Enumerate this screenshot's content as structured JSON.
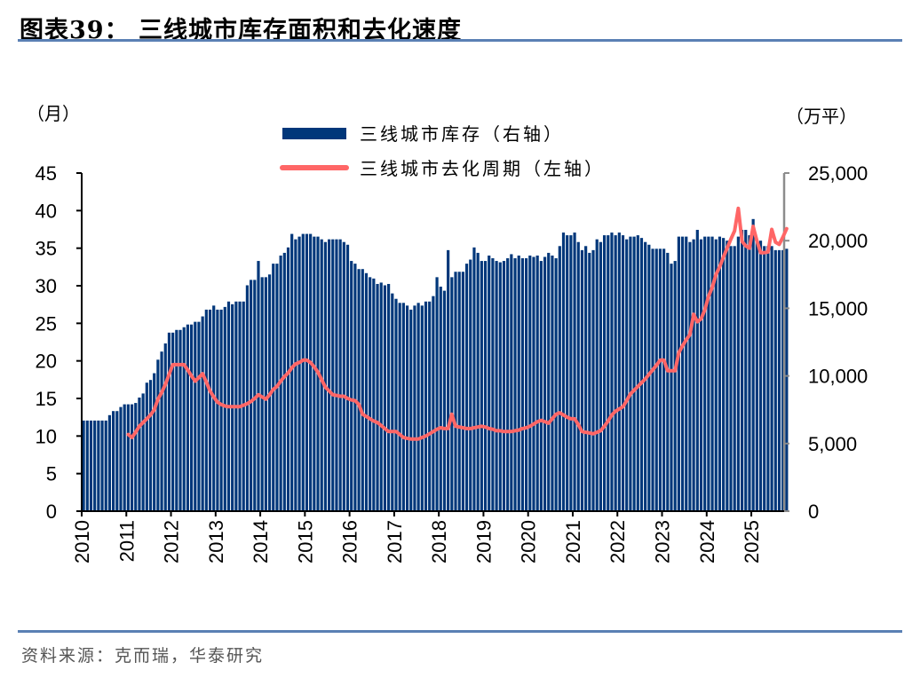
{
  "title": "图表39：  三线城市库存面积和去化速度",
  "source": "资料来源：克而瑞，华泰研究",
  "colors": {
    "bars": "#00377a",
    "line": "#ff6666",
    "rule": "#5a80b4",
    "right_axis": "#8c8c8c"
  },
  "chart_data": {
    "type": "bar+line",
    "left_axis": {
      "unit_label": "（月）",
      "ylim": [
        0,
        45
      ],
      "ticks": [
        "0",
        "5",
        "10",
        "15",
        "20",
        "25",
        "30",
        "35",
        "40",
        "45"
      ]
    },
    "right_axis": {
      "unit_label": "（万平）",
      "ylim": [
        0,
        25000
      ],
      "ticks": [
        "0",
        "5,000",
        "10,000",
        "15,000",
        "20,000",
        "25,000"
      ]
    },
    "x_ticks": [
      "2010",
      "2011",
      "2012",
      "2013",
      "2014",
      "2015",
      "2016",
      "2017",
      "2018",
      "2019",
      "2020",
      "2021",
      "2022",
      "2023",
      "2024",
      "2025"
    ],
    "legend_placement": "top-center",
    "series": [
      {
        "name": "三线城市库存（右轴）",
        "type": "bar",
        "axis": "right",
        "start": "2010-01",
        "frequency": "monthly",
        "values": [
          6700,
          6700,
          6700,
          6700,
          6700,
          6700,
          6700,
          7100,
          7400,
          7400,
          7700,
          7900,
          7900,
          7900,
          8000,
          8400,
          8700,
          9500,
          9700,
          10200,
          11200,
          11800,
          12400,
          13200,
          13200,
          13400,
          13400,
          13600,
          13800,
          13800,
          14000,
          14000,
          14400,
          14900,
          14900,
          15200,
          14900,
          14900,
          15100,
          15500,
          15300,
          15500,
          15500,
          15500,
          16700,
          17100,
          17100,
          18500,
          17300,
          17300,
          17500,
          18300,
          18300,
          18900,
          19100,
          19500,
          20500,
          20100,
          20300,
          20500,
          20500,
          20500,
          20300,
          20300,
          20100,
          19900,
          20100,
          20100,
          20100,
          20100,
          19900,
          19700,
          18500,
          18300,
          17900,
          17900,
          17600,
          17300,
          17200,
          16800,
          16900,
          16700,
          16800,
          16100,
          15700,
          15400,
          15400,
          15200,
          14900,
          15200,
          15400,
          15200,
          15500,
          15500,
          15900,
          17300,
          16600,
          16300,
          19300,
          17300,
          17700,
          17700,
          17700,
          18300,
          18600,
          19500,
          19100,
          18500,
          18500,
          18900,
          18700,
          18500,
          18400,
          18500,
          18700,
          19000,
          18700,
          18900,
          18700,
          18700,
          18900,
          18800,
          18900,
          18500,
          18800,
          19100,
          18900,
          18700,
          19600,
          20600,
          20400,
          20400,
          20600,
          19900,
          19300,
          19600,
          19100,
          19300,
          20100,
          19900,
          20400,
          20400,
          20600,
          20400,
          20600,
          20400,
          20100,
          20300,
          20300,
          20400,
          20200,
          19900,
          19700,
          19400,
          19400,
          19400,
          19400,
          19100,
          18300,
          18500,
          20300,
          20300,
          20300,
          19900,
          20100,
          20800,
          20100,
          20300,
          20300,
          20300,
          20100,
          20300,
          20200,
          20000,
          19600,
          19600,
          20300,
          20800,
          20800,
          20400,
          21600,
          20100,
          20000,
          19600,
          19600,
          19600,
          19300,
          19300,
          19300,
          19400
        ]
      },
      {
        "name": "三线城市去化周期（左轴）",
        "type": "line",
        "axis": "left",
        "start": "2011-01",
        "frequency": "monthly",
        "values": [
          10.2,
          9.8,
          10.5,
          11.3,
          11.8,
          12.3,
          12.8,
          13.5,
          14.9,
          15.8,
          16.9,
          18.2,
          19.5,
          19.5,
          19.5,
          19.5,
          18.8,
          18.0,
          17.3,
          17.8,
          18.3,
          17.2,
          16.0,
          15.2,
          14.5,
          14.2,
          14.0,
          13.9,
          13.9,
          13.9,
          13.9,
          14.1,
          14.3,
          14.6,
          15.0,
          15.5,
          15.2,
          14.9,
          15.5,
          16.2,
          16.6,
          17.3,
          17.9,
          18.4,
          19.1,
          19.6,
          19.8,
          20.1,
          20.1,
          19.8,
          19.2,
          18.5,
          17.5,
          16.5,
          16.0,
          15.5,
          15.4,
          15.3,
          15.3,
          15.0,
          14.8,
          14.7,
          14.2,
          12.9,
          12.6,
          12.3,
          12.0,
          11.8,
          11.4,
          11.0,
          10.6,
          10.6,
          10.6,
          10.2,
          9.8,
          9.7,
          9.6,
          9.6,
          9.6,
          9.8,
          10.0,
          10.3,
          10.6,
          10.9,
          11.1,
          11.0,
          11.0,
          12.9,
          11.3,
          11.2,
          11.1,
          11.0,
          11.0,
          11.1,
          11.2,
          11.3,
          11.2,
          11.0,
          10.9,
          10.7,
          10.7,
          10.6,
          10.6,
          10.6,
          10.7,
          10.8,
          11.0,
          11.1,
          11.3,
          11.6,
          11.9,
          12.1,
          11.9,
          11.7,
          12.3,
          12.9,
          13.1,
          12.8,
          12.5,
          12.3,
          12.3,
          11.5,
          10.6,
          10.5,
          10.4,
          10.3,
          10.5,
          10.7,
          11.3,
          12.0,
          12.8,
          13.3,
          13.6,
          13.9,
          14.7,
          15.6,
          16.1,
          16.6,
          17.1,
          17.6,
          18.2,
          18.8,
          19.4,
          20.1,
          20.1,
          18.7,
          18.7,
          18.7,
          21.1,
          22.0,
          22.8,
          23.5,
          26.2,
          25.2,
          25.6,
          26.8,
          28.6,
          29.8,
          31.5,
          32.5,
          33.8,
          35.0,
          36.2,
          37.3,
          40.3,
          35.9,
          35.3,
          35.0,
          37.9,
          36.0,
          34.4,
          34.4,
          34.5,
          37.5,
          35.8,
          35.5,
          36.5,
          37.6
        ]
      }
    ]
  }
}
